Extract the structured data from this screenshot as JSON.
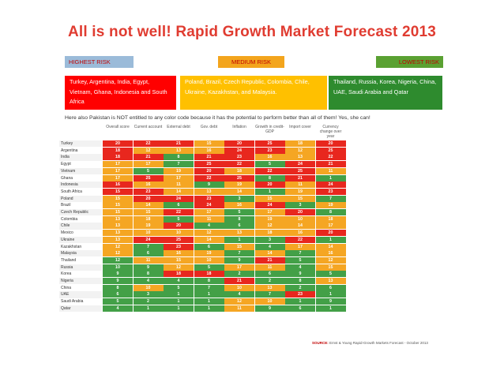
{
  "title": "All is not well! Rapid Growth Market Forecast 2013",
  "risk_labels": {
    "high": "HIGHEST RISK",
    "medium": "MEDIUM RISK",
    "low": "LOWEST RISK"
  },
  "groups": {
    "high": "Turkey, Argentina, India, Egypt, Vietnam,  Ghana, Indonesia and South Africa",
    "medium": "Poland, Brazil, Czech Republic, Colombia, Chile, Ukraine, Kazakhstan,  and Malaysia.",
    "low": "Thailand, Russia, Korea, Nigeria, China, UAE, Saudi Arabia and Qatar"
  },
  "note": "Here also Pakistan is NOT entitled to any color code because it has the potential to perform better than all of them! Yes, she can!",
  "colors": {
    "red": "#e8271e",
    "orange": "#f5a623",
    "green": "#43a047"
  },
  "table": {
    "columns": [
      "Overall score",
      "Current account",
      "External debt",
      "Gov. debt",
      "Inflation",
      "Growth in credit-GDP",
      "Import cover",
      "Currency change over year"
    ],
    "rows": [
      {
        "country": "Turkey",
        "values": [
          20,
          22,
          21,
          15,
          20,
          25,
          18,
          20
        ]
      },
      {
        "country": "Argentina",
        "values": [
          18,
          12,
          13,
          16,
          24,
          23,
          12,
          25
        ]
      },
      {
        "country": "India",
        "values": [
          18,
          21,
          8,
          21,
          23,
          16,
          13,
          22
        ]
      },
      {
        "country": "Egypt",
        "values": [
          17,
          17,
          7,
          25,
          22,
          5,
          24,
          21
        ]
      },
      {
        "country": "Vietnam",
        "values": [
          17,
          5,
          19,
          20,
          18,
          22,
          25,
          11
        ]
      },
      {
        "country": "Ghana",
        "values": [
          17,
          25,
          17,
          22,
          25,
          8,
          21,
          1
        ]
      },
      {
        "country": "Indonesia",
        "values": [
          16,
          16,
          11,
          9,
          19,
          20,
          11,
          24
        ]
      },
      {
        "country": "South Africa",
        "values": [
          15,
          23,
          14,
          13,
          14,
          1,
          19,
          23
        ]
      },
      {
        "country": "Poland",
        "values": [
          15,
          20,
          24,
          23,
          3,
          15,
          15,
          7
        ]
      },
      {
        "country": "Brazil",
        "values": [
          15,
          14,
          6,
          24,
          16,
          24,
          3,
          19
        ]
      },
      {
        "country": "Czech Republic",
        "values": [
          15,
          15,
          22,
          17,
          5,
          17,
          20,
          8
        ]
      },
      {
        "country": "Colombia",
        "values": [
          13,
          18,
          5,
          11,
          8,
          19,
          10,
          18
        ]
      },
      {
        "country": "Chile",
        "values": [
          13,
          19,
          20,
          4,
          6,
          12,
          14,
          17
        ]
      },
      {
        "country": "Mexico",
        "values": [
          13,
          10,
          10,
          12,
          13,
          18,
          16,
          20
        ]
      },
      {
        "country": "Ukraine",
        "values": [
          13,
          24,
          25,
          14,
          1,
          3,
          22,
          1
        ]
      },
      {
        "country": "Kazakhstan",
        "values": [
          12,
          7,
          23,
          6,
          15,
          4,
          17,
          14
        ]
      },
      {
        "country": "Malaysia",
        "values": [
          12,
          6,
          16,
          19,
          7,
          14,
          7,
          16
        ]
      },
      {
        "country": "Thailand",
        "values": [
          12,
          11,
          15,
          10,
          9,
          21,
          5,
          12
        ]
      },
      {
        "country": "Russia",
        "values": [
          10,
          9,
          12,
          5,
          17,
          11,
          4,
          15
        ]
      },
      {
        "country": "Korea",
        "values": [
          9,
          8,
          18,
          18,
          2,
          6,
          9,
          5
        ]
      },
      {
        "country": "Nigeria",
        "values": [
          9,
          4,
          4,
          8,
          21,
          2,
          8,
          13
        ]
      },
      {
        "country": "China",
        "values": [
          8,
          10,
          5,
          7,
          10,
          13,
          2,
          6
        ]
      },
      {
        "country": "UAE",
        "values": [
          6,
          3,
          1,
          1,
          4,
          7,
          23,
          1
        ]
      },
      {
        "country": "Saudi Arabia",
        "values": [
          5,
          2,
          1,
          1,
          12,
          10,
          1,
          9
        ]
      },
      {
        "country": "Qatar",
        "values": [
          4,
          1,
          1,
          1,
          11,
          9,
          6,
          1
        ]
      }
    ],
    "cell_colors": [
      [
        "red",
        "red",
        "red",
        "orange",
        "red",
        "red",
        "orange",
        "red"
      ],
      [
        "red",
        "orange",
        "orange",
        "orange",
        "red",
        "red",
        "orange",
        "red"
      ],
      [
        "red",
        "red",
        "green",
        "red",
        "red",
        "orange",
        "orange",
        "red"
      ],
      [
        "orange",
        "orange",
        "green",
        "red",
        "red",
        "green",
        "red",
        "red"
      ],
      [
        "orange",
        "green",
        "orange",
        "red",
        "orange",
        "red",
        "red",
        "orange"
      ],
      [
        "orange",
        "red",
        "orange",
        "red",
        "red",
        "green",
        "red",
        "green"
      ],
      [
        "red",
        "orange",
        "orange",
        "green",
        "orange",
        "red",
        "orange",
        "red"
      ],
      [
        "red",
        "red",
        "orange",
        "orange",
        "orange",
        "green",
        "orange",
        "red"
      ],
      [
        "orange",
        "red",
        "red",
        "red",
        "green",
        "orange",
        "orange",
        "green"
      ],
      [
        "orange",
        "orange",
        "green",
        "red",
        "orange",
        "red",
        "green",
        "orange"
      ],
      [
        "orange",
        "orange",
        "red",
        "orange",
        "green",
        "orange",
        "red",
        "green"
      ],
      [
        "orange",
        "orange",
        "green",
        "orange",
        "green",
        "orange",
        "orange",
        "orange"
      ],
      [
        "orange",
        "orange",
        "red",
        "green",
        "green",
        "orange",
        "orange",
        "orange"
      ],
      [
        "orange",
        "orange",
        "orange",
        "orange",
        "orange",
        "orange",
        "orange",
        "red"
      ],
      [
        "orange",
        "red",
        "red",
        "orange",
        "green",
        "green",
        "red",
        "green"
      ],
      [
        "orange",
        "green",
        "red",
        "green",
        "orange",
        "green",
        "orange",
        "orange"
      ],
      [
        "orange",
        "green",
        "orange",
        "orange",
        "green",
        "orange",
        "green",
        "orange"
      ],
      [
        "green",
        "orange",
        "orange",
        "orange",
        "green",
        "red",
        "green",
        "orange"
      ],
      [
        "green",
        "green",
        "orange",
        "green",
        "orange",
        "orange",
        "green",
        "orange"
      ],
      [
        "green",
        "green",
        "red",
        "red",
        "green",
        "green",
        "green",
        "green"
      ],
      [
        "green",
        "green",
        "green",
        "green",
        "red",
        "green",
        "green",
        "orange"
      ],
      [
        "green",
        "orange",
        "green",
        "green",
        "orange",
        "orange",
        "green",
        "green"
      ],
      [
        "green",
        "green",
        "green",
        "green",
        "green",
        "green",
        "red",
        "green"
      ],
      [
        "green",
        "green",
        "green",
        "green",
        "orange",
        "orange",
        "green",
        "green"
      ],
      [
        "green",
        "green",
        "green",
        "green",
        "orange",
        "green",
        "green",
        "green"
      ]
    ]
  },
  "source_label": "SOURCE:",
  "source_text": "Ernst & Young Rapid-Growth Markets Forecast - October 2013"
}
